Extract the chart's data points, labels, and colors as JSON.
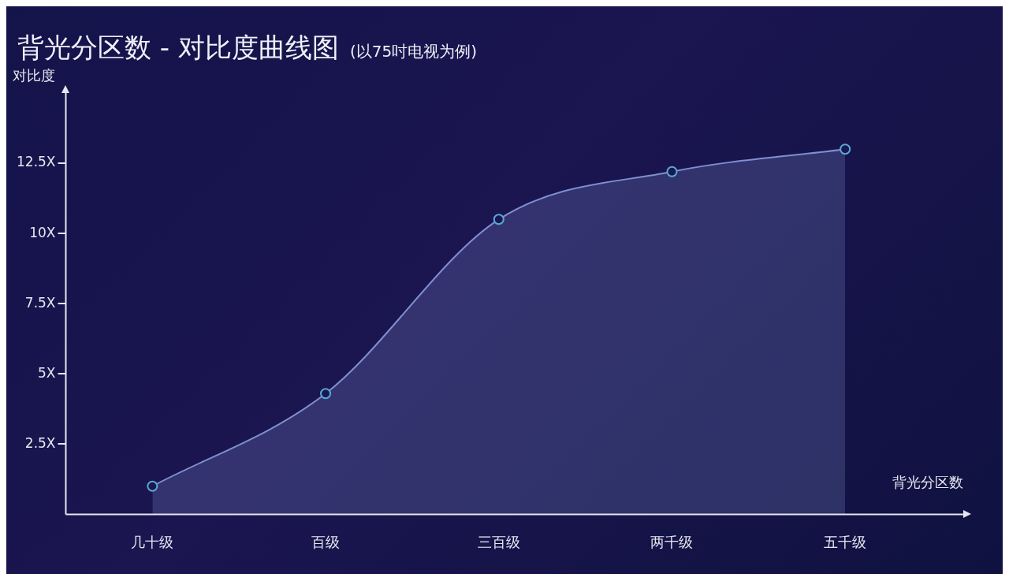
{
  "chart_data": {
    "type": "area",
    "title": "背光分区数 - 对比度曲线图",
    "subtitle": "(以75吋电视为例)",
    "xlabel": "背光分区数",
    "ylabel": "对比度",
    "categories": [
      "几十级",
      "百级",
      "三百级",
      "两千级",
      "五千级"
    ],
    "series": [
      {
        "color": "#7f8fd0",
        "values": [
          1.0,
          4.3,
          10.5,
          12.2,
          13.0
        ]
      }
    ],
    "ylim": [
      0,
      15
    ],
    "yticks": [
      {
        "value": 2.5,
        "label": "2.5X"
      },
      {
        "value": 5,
        "label": "5X"
      },
      {
        "value": 7.5,
        "label": "7.5X"
      },
      {
        "value": 10,
        "label": "10X"
      },
      {
        "value": 12.5,
        "label": "12.5X"
      }
    ],
    "grid": false,
    "legend": false,
    "marker": "circle",
    "line_style": "solid"
  }
}
